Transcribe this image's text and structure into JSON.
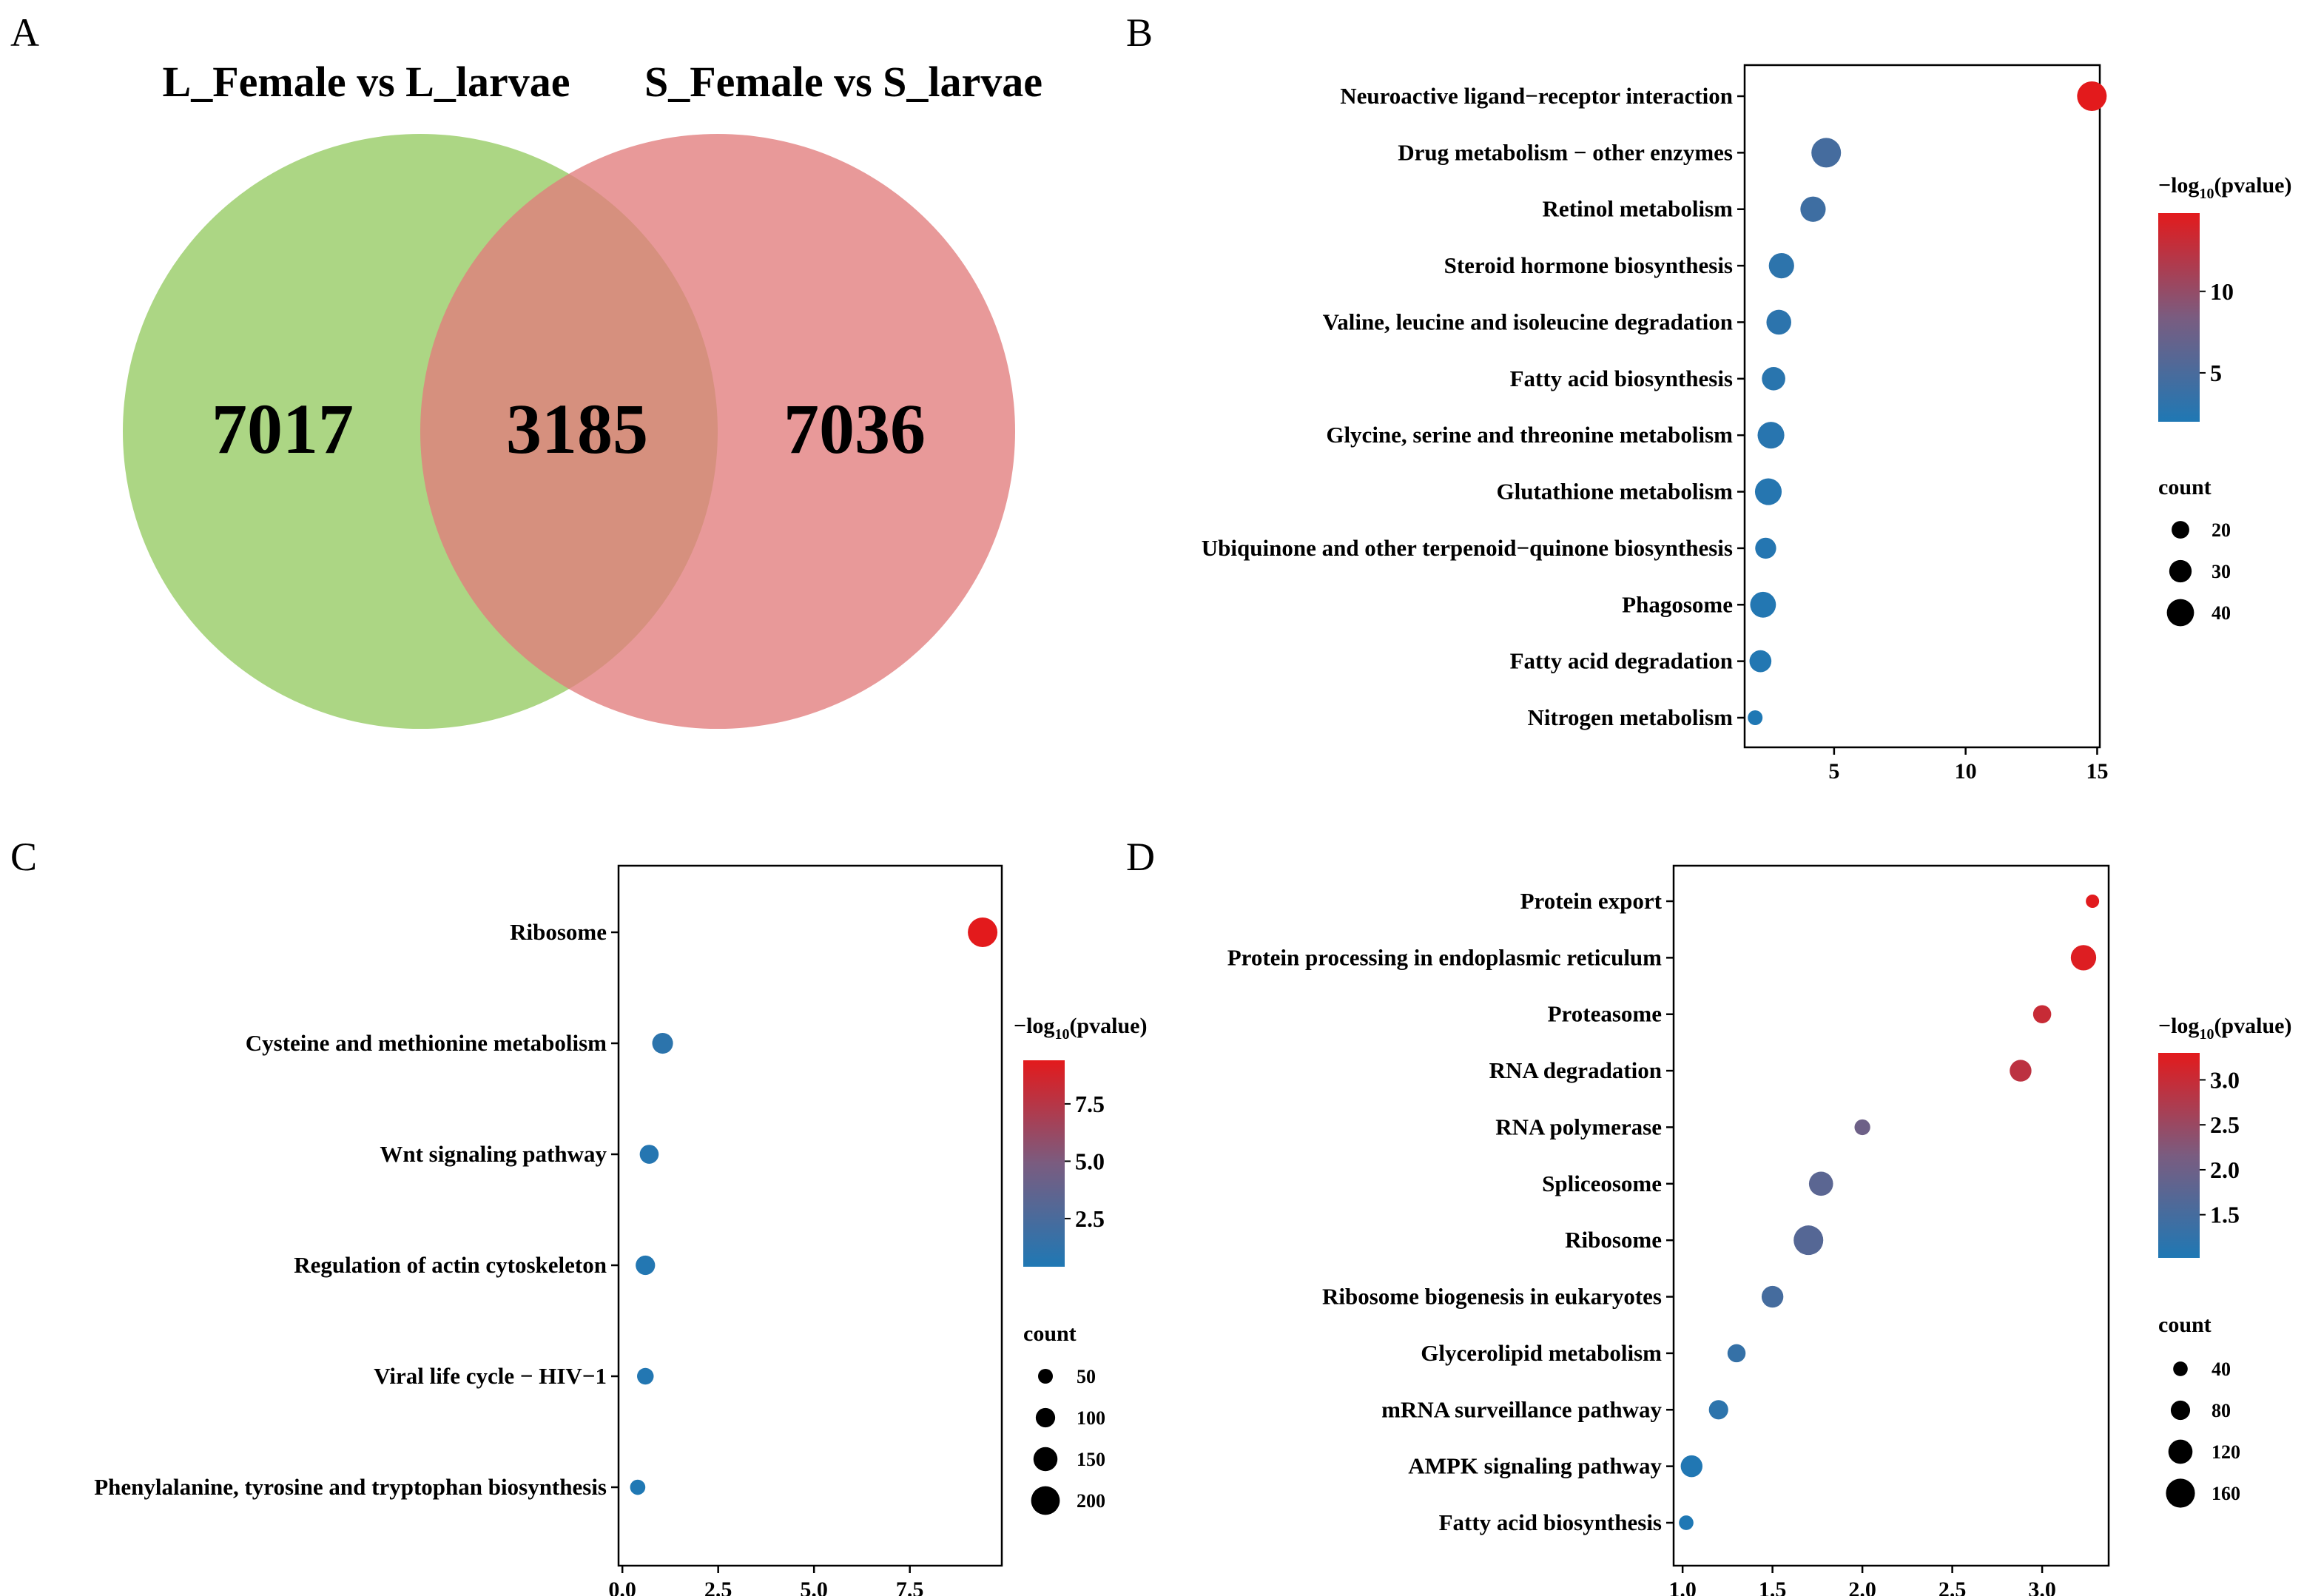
{
  "panels": {
    "a": "A",
    "b": "B",
    "c": "C",
    "d": "D"
  },
  "venn": {
    "left_title": "L_Female vs L_larvae",
    "right_title": "S_Female vs S_larvae",
    "left_only": "7017",
    "overlap": "3185",
    "right_only": "7036",
    "left_color": "#9ecf6f",
    "right_color": "#e27c7c"
  },
  "colors": {
    "low": "#1f78b4",
    "mid": "#7a5c80",
    "high": "#e31a1c"
  },
  "chart_data": [
    {
      "id": "B",
      "type": "scatter",
      "title": "",
      "xlabel": "",
      "ylabel": "",
      "xlim": [
        1.6,
        15.1
      ],
      "xticks": [
        "5",
        "10",
        "15"
      ],
      "xtick_values": [
        5,
        10,
        15
      ],
      "categories": [
        "Neuroactive ligand−receptor interaction",
        "Drug metabolism − other enzymes",
        "Retinol metabolism",
        "Steroid hormone biosynthesis",
        "Valine, leucine and isoleucine degradation",
        "Fatty acid biosynthesis",
        "Glycine, serine and threonine metabolism",
        "Glutathione metabolism",
        "Ubiquinone and other terpenoid−quinone biosynthesis",
        "Phagosome",
        "Fatty acid degradation",
        "Nitrogen metabolism"
      ],
      "x": [
        14.8,
        4.7,
        4.2,
        3.0,
        2.9,
        2.7,
        2.6,
        2.5,
        2.4,
        2.3,
        2.2,
        2.0
      ],
      "count": [
        45,
        45,
        36,
        36,
        35,
        32,
        39,
        39,
        27,
        37,
        29,
        14
      ],
      "color_value": [
        14.8,
        4.7,
        4.2,
        3.0,
        2.9,
        2.7,
        2.6,
        2.5,
        2.4,
        2.3,
        2.2,
        2.0
      ],
      "color_legend": {
        "title_main": "−log",
        "title_sub": "10",
        "title_end": "(pvalue)",
        "range": [
          2.0,
          14.8
        ],
        "ticks": [
          "5",
          "10"
        ],
        "tick_values": [
          5,
          10
        ]
      },
      "size_legend": {
        "title": "count",
        "labels": [
          "20",
          "30",
          "40"
        ],
        "values": [
          20,
          30,
          40
        ],
        "size_range": [
          14,
          45
        ]
      }
    },
    {
      "id": "C",
      "type": "scatter",
      "title": "",
      "xlabel": "",
      "ylabel": "",
      "xlim": [
        -0.1,
        9.9
      ],
      "xticks": [
        "0.0",
        "2.5",
        "5.0",
        "7.5"
      ],
      "xtick_values": [
        0.0,
        2.5,
        5.0,
        7.5
      ],
      "categories": [
        "Ribosome",
        "Cysteine and methionine metabolism",
        "Wnt signaling pathway",
        "Regulation of actin cytoskeleton",
        "Viral life cycle − HIV−1",
        "Phenylalanine, tyrosine and tryptophan biosynthesis"
      ],
      "x": [
        9.4,
        1.05,
        0.7,
        0.6,
        0.6,
        0.4
      ],
      "count": [
        210,
        115,
        95,
        100,
        70,
        55
      ],
      "color_value": [
        9.4,
        1.05,
        0.7,
        0.6,
        0.6,
        0.4
      ],
      "color_legend": {
        "title_main": "−log",
        "title_sub": "10",
        "title_end": "(pvalue)",
        "range": [
          0.4,
          9.4
        ],
        "ticks": [
          "2.5",
          "5.0",
          "7.5"
        ],
        "tick_values": [
          2.5,
          5.0,
          7.5
        ]
      },
      "size_legend": {
        "title": "count",
        "labels": [
          "50",
          "100",
          "150",
          "200"
        ],
        "values": [
          50,
          100,
          150,
          200
        ],
        "size_range": [
          50,
          210
        ]
      }
    },
    {
      "id": "D",
      "type": "scatter",
      "title": "",
      "xlabel": "",
      "ylabel": "",
      "xlim": [
        0.95,
        3.37
      ],
      "xticks": [
        "1.0",
        "1.5",
        "2.0",
        "2.5",
        "3.0"
      ],
      "xtick_values": [
        1.0,
        1.5,
        2.0,
        2.5,
        3.0
      ],
      "categories": [
        "Protein export",
        "Protein processing in endoplasmic reticulum",
        "Proteasome",
        "RNA degradation",
        "RNA polymerase",
        "Spliceosome",
        "Ribosome",
        "Ribosome biogenesis in eukaryotes",
        "Glycerolipid metabolism",
        "mRNA surveillance pathway",
        "AMPK signaling pathway",
        "Fatty acid biosynthesis"
      ],
      "x": [
        3.28,
        3.23,
        3.0,
        2.88,
        2.0,
        1.77,
        1.7,
        1.5,
        1.3,
        1.2,
        1.05,
        1.02
      ],
      "count": [
        30,
        130,
        70,
        100,
        50,
        120,
        165,
        100,
        70,
        80,
        100,
        40
      ],
      "color_value": [
        3.28,
        3.23,
        3.0,
        2.88,
        2.0,
        1.77,
        1.7,
        1.5,
        1.3,
        1.2,
        1.05,
        1.02
      ],
      "color_legend": {
        "title_main": "−log",
        "title_sub": "10",
        "title_end": "(pvalue)",
        "range": [
          1.02,
          3.3
        ],
        "ticks": [
          "1.5",
          "2.0",
          "2.5",
          "3.0"
        ],
        "tick_values": [
          1.5,
          2.0,
          2.5,
          3.0
        ]
      },
      "size_legend": {
        "title": "count",
        "labels": [
          "40",
          "80",
          "120",
          "160"
        ],
        "values": [
          40,
          80,
          120,
          160
        ],
        "size_range": [
          30,
          165
        ]
      }
    }
  ]
}
